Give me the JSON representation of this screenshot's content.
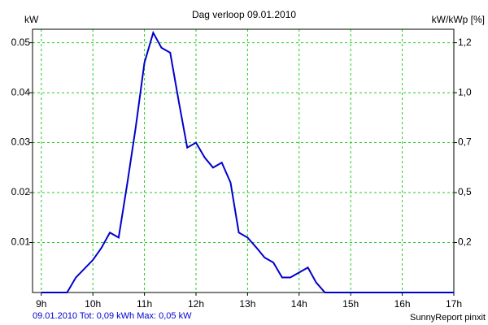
{
  "chart_data": {
    "type": "line",
    "title": "Dag  verloop 09.01.2010",
    "y_label": "kW",
    "y2_label": "kW/kWp [%]",
    "footer_left": "09.01.2010 Tot: 0,09 kWh Max: 0,05 kW",
    "footer_right": "SunnyReport pinxit",
    "x": [
      9,
      9.5,
      9.67,
      10,
      10.17,
      10.33,
      10.5,
      10.67,
      10.83,
      11,
      11.17,
      11.33,
      11.5,
      11.67,
      11.83,
      12,
      12.17,
      12.33,
      12.5,
      12.67,
      12.83,
      13,
      13.17,
      13.33,
      13.5,
      13.67,
      13.83,
      14,
      14.17,
      14.33,
      14.5,
      17
    ],
    "series": [
      {
        "name": "kW",
        "color": "#0000cc",
        "values": [
          0,
          0,
          0.003,
          0.0065,
          0.009,
          0.012,
          0.011,
          0.022,
          0.033,
          0.046,
          0.052,
          0.049,
          0.048,
          0.038,
          0.029,
          0.03,
          0.027,
          0.025,
          0.026,
          0.022,
          0.012,
          0.011,
          0.009,
          0.007,
          0.006,
          0.003,
          0.003,
          0.004,
          0.005,
          0.002,
          0,
          0
        ]
      }
    ],
    "xlim": [
      8.83,
      17
    ],
    "xticks": [
      {
        "value": 9,
        "label": "9h"
      },
      {
        "value": 10,
        "label": "10h"
      },
      {
        "value": 11,
        "label": "11h"
      },
      {
        "value": 12,
        "label": "12h"
      },
      {
        "value": 13,
        "label": "13h"
      },
      {
        "value": 14,
        "label": "14h"
      },
      {
        "value": 15,
        "label": "15h"
      },
      {
        "value": 16,
        "label": "16h"
      },
      {
        "value": 17,
        "label": "17h"
      }
    ],
    "ylim": [
      0,
      0.0527
    ],
    "yticks": [
      0.01,
      0.02,
      0.03,
      0.04,
      0.05
    ],
    "y2lim": [
      0,
      1.2648
    ],
    "y2ticks": [
      {
        "value": 0.24,
        "label": "0,2"
      },
      {
        "value": 0.48,
        "label": "0,5"
      },
      {
        "value": 0.72,
        "label": "0,7"
      },
      {
        "value": 0.96,
        "label": "1,0"
      },
      {
        "value": 1.2,
        "label": "1,2"
      }
    ],
    "grid": true
  }
}
